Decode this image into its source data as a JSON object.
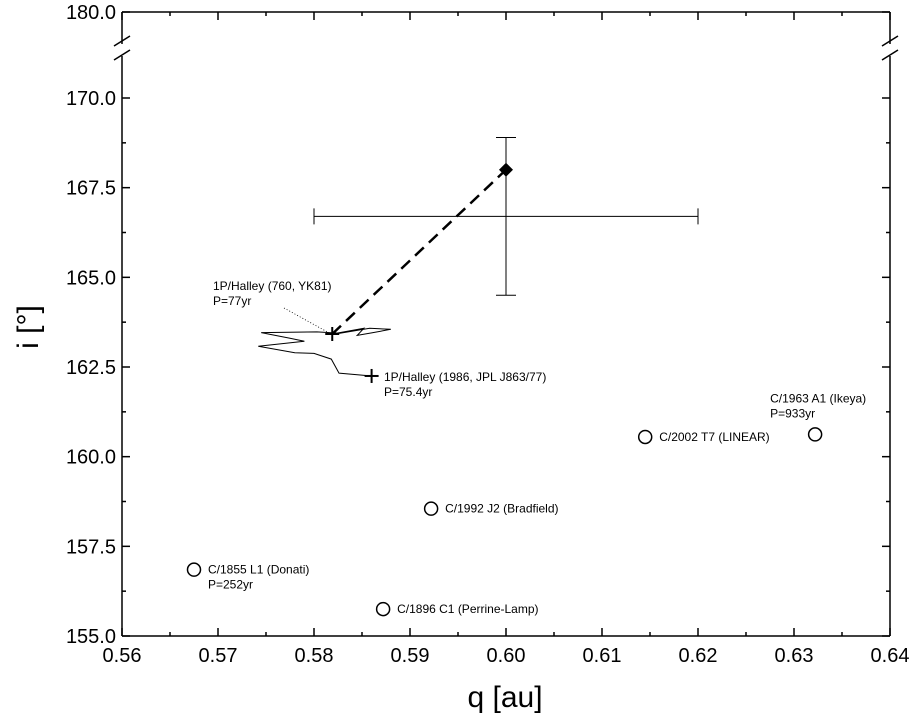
{
  "chart_data": {
    "type": "scatter",
    "xlabel": "q [au]",
    "ylabel": "i [°]",
    "xlim": [
      0.56,
      0.64
    ],
    "ylim_lower": [
      155.0,
      170.0
    ],
    "ylim_upper": [
      180.0
    ],
    "axis_break": true,
    "grid": false,
    "x_ticks": [
      "0.56",
      "0.57",
      "0.58",
      "0.59",
      "0.60",
      "0.61",
      "0.62",
      "0.63",
      "0.64"
    ],
    "y_ticks": [
      "155.0",
      "157.5",
      "160.0",
      "162.5",
      "165.0",
      "167.5",
      "170.0",
      "180.0"
    ],
    "comets": [
      {
        "label": "C/1855 L1 (Donati)",
        "period": "P=252yr",
        "q": 0.5675,
        "i": 156.85
      },
      {
        "label": "C/1896 C1 (Perrine-Lamp)",
        "period": "",
        "q": 0.5872,
        "i": 155.75
      },
      {
        "label": "C/1992 J2 (Bradfield)",
        "period": "",
        "q": 0.5922,
        "i": 158.55
      },
      {
        "label": "C/2002 T7 (LINEAR)",
        "period": "",
        "q": 0.6145,
        "i": 160.55
      },
      {
        "label": "C/1963 A1 (Ikeya)",
        "period": "P=933yr",
        "q": 0.6322,
        "i": 160.62
      }
    ],
    "halley_points": [
      {
        "label": "1P/Halley (760, YK81)",
        "period": "P=77yr",
        "q": 0.5819,
        "i": 163.42
      },
      {
        "label": "1P/Halley (1986, JPL J863/77)",
        "period": "P=75.4yr",
        "q": 0.586,
        "i": 162.25
      }
    ],
    "halley_track": [
      [
        0.586,
        162.25
      ],
      [
        0.5826,
        162.33
      ],
      [
        0.5818,
        162.72
      ],
      [
        0.58,
        162.88
      ],
      [
        0.578,
        162.9
      ],
      [
        0.5742,
        163.08
      ],
      [
        0.579,
        163.22
      ],
      [
        0.5775,
        163.3
      ],
      [
        0.5745,
        163.46
      ],
      [
        0.5803,
        163.48
      ],
      [
        0.5827,
        163.44
      ],
      [
        0.5858,
        163.58
      ],
      [
        0.588,
        163.55
      ],
      [
        0.586,
        163.45
      ],
      [
        0.5845,
        163.38
      ],
      [
        0.5852,
        163.58
      ],
      [
        0.5819,
        163.42
      ]
    ],
    "measured": {
      "q": 0.6,
      "i": 168.0,
      "q_err": [
        0.58,
        0.62
      ],
      "i_err": [
        164.5,
        168.9
      ],
      "i_mark": 166.7
    },
    "connector": {
      "from": [
        0.5819,
        163.42
      ],
      "to": [
        0.6,
        168.0
      ],
      "style": "dashed"
    }
  }
}
